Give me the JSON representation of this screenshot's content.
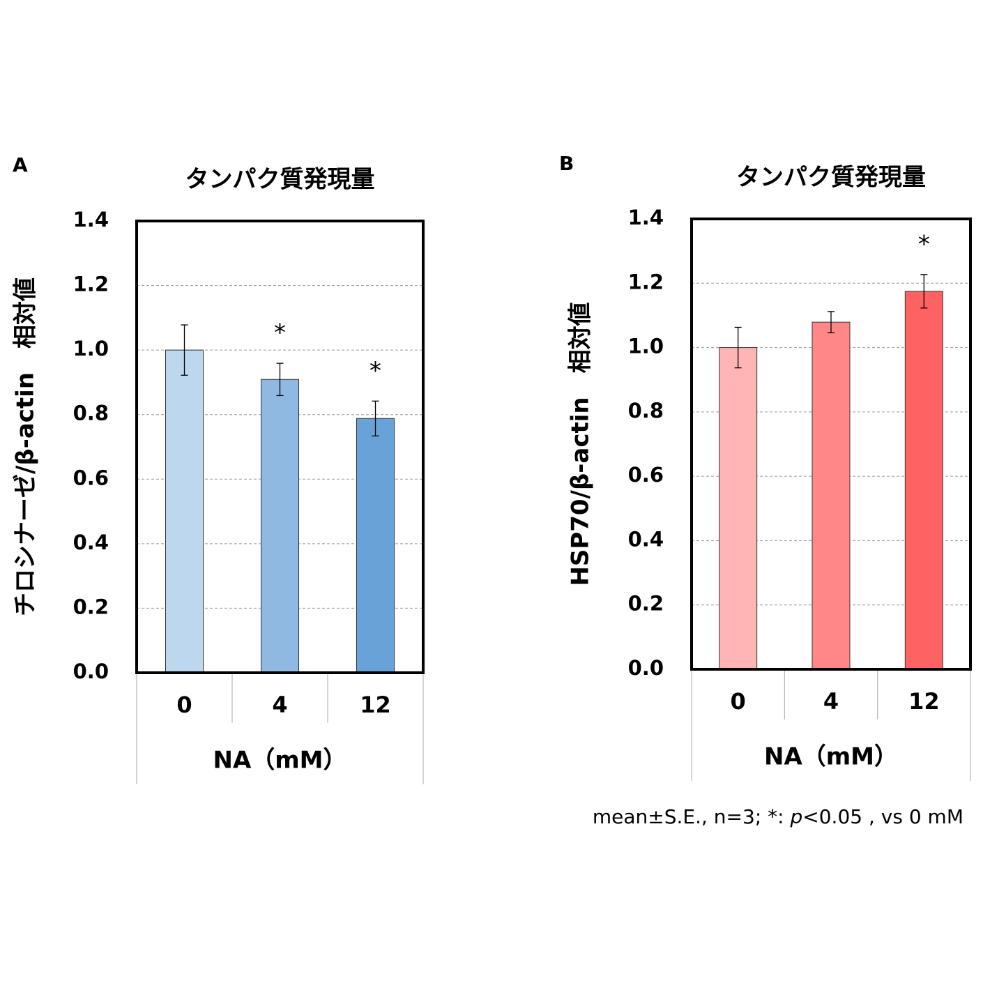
{
  "chart_data": [
    {
      "type": "bar",
      "panel": "A",
      "title": "タンパク質発現量",
      "ylabel": "チロシナーゼ/β-actin　相対値",
      "xlabel": "NA（mM）",
      "categories": [
        "0",
        "4",
        "12"
      ],
      "values": [
        1.0,
        0.909,
        0.788
      ],
      "errors": [
        0.078,
        0.05,
        0.054
      ],
      "significance": [
        null,
        "*",
        "*"
      ],
      "colors": [
        "#bdd7ee",
        "#8fb9e1",
        "#68a2d7"
      ],
      "ylim": [
        0,
        1.4
      ],
      "yticks": [
        {
          "value": 0,
          "label": "0.0"
        },
        0.2,
        0.4,
        0.6,
        0.8,
        {
          "value": 1,
          "label": "1.0"
        },
        1.2,
        1.4
      ],
      "grid": true
    },
    {
      "type": "bar",
      "panel": "B",
      "title": "タンパク質発現量",
      "ylabel": "HSP70/β-actin　相対値",
      "xlabel": "NA（mM）",
      "categories": [
        "0",
        "4",
        "12"
      ],
      "values": [
        1.0,
        1.079,
        1.175
      ],
      "errors": [
        0.063,
        0.033,
        0.052
      ],
      "significance": [
        null,
        null,
        "*"
      ],
      "colors": [
        "#ffb5b5",
        "#ff8787",
        "#ff6262"
      ],
      "ylim": [
        0,
        1.4
      ],
      "yticks": [
        {
          "value": 0,
          "label": "0.0"
        },
        0.2,
        0.4,
        0.6,
        0.8,
        {
          "value": 1,
          "label": "1.0"
        },
        1.2,
        1.4
      ],
      "grid": true
    }
  ],
  "footnote": [
    "mean±S.E., n=3; *: ",
    "p",
    "<0.05 , vs 0 mM"
  ]
}
